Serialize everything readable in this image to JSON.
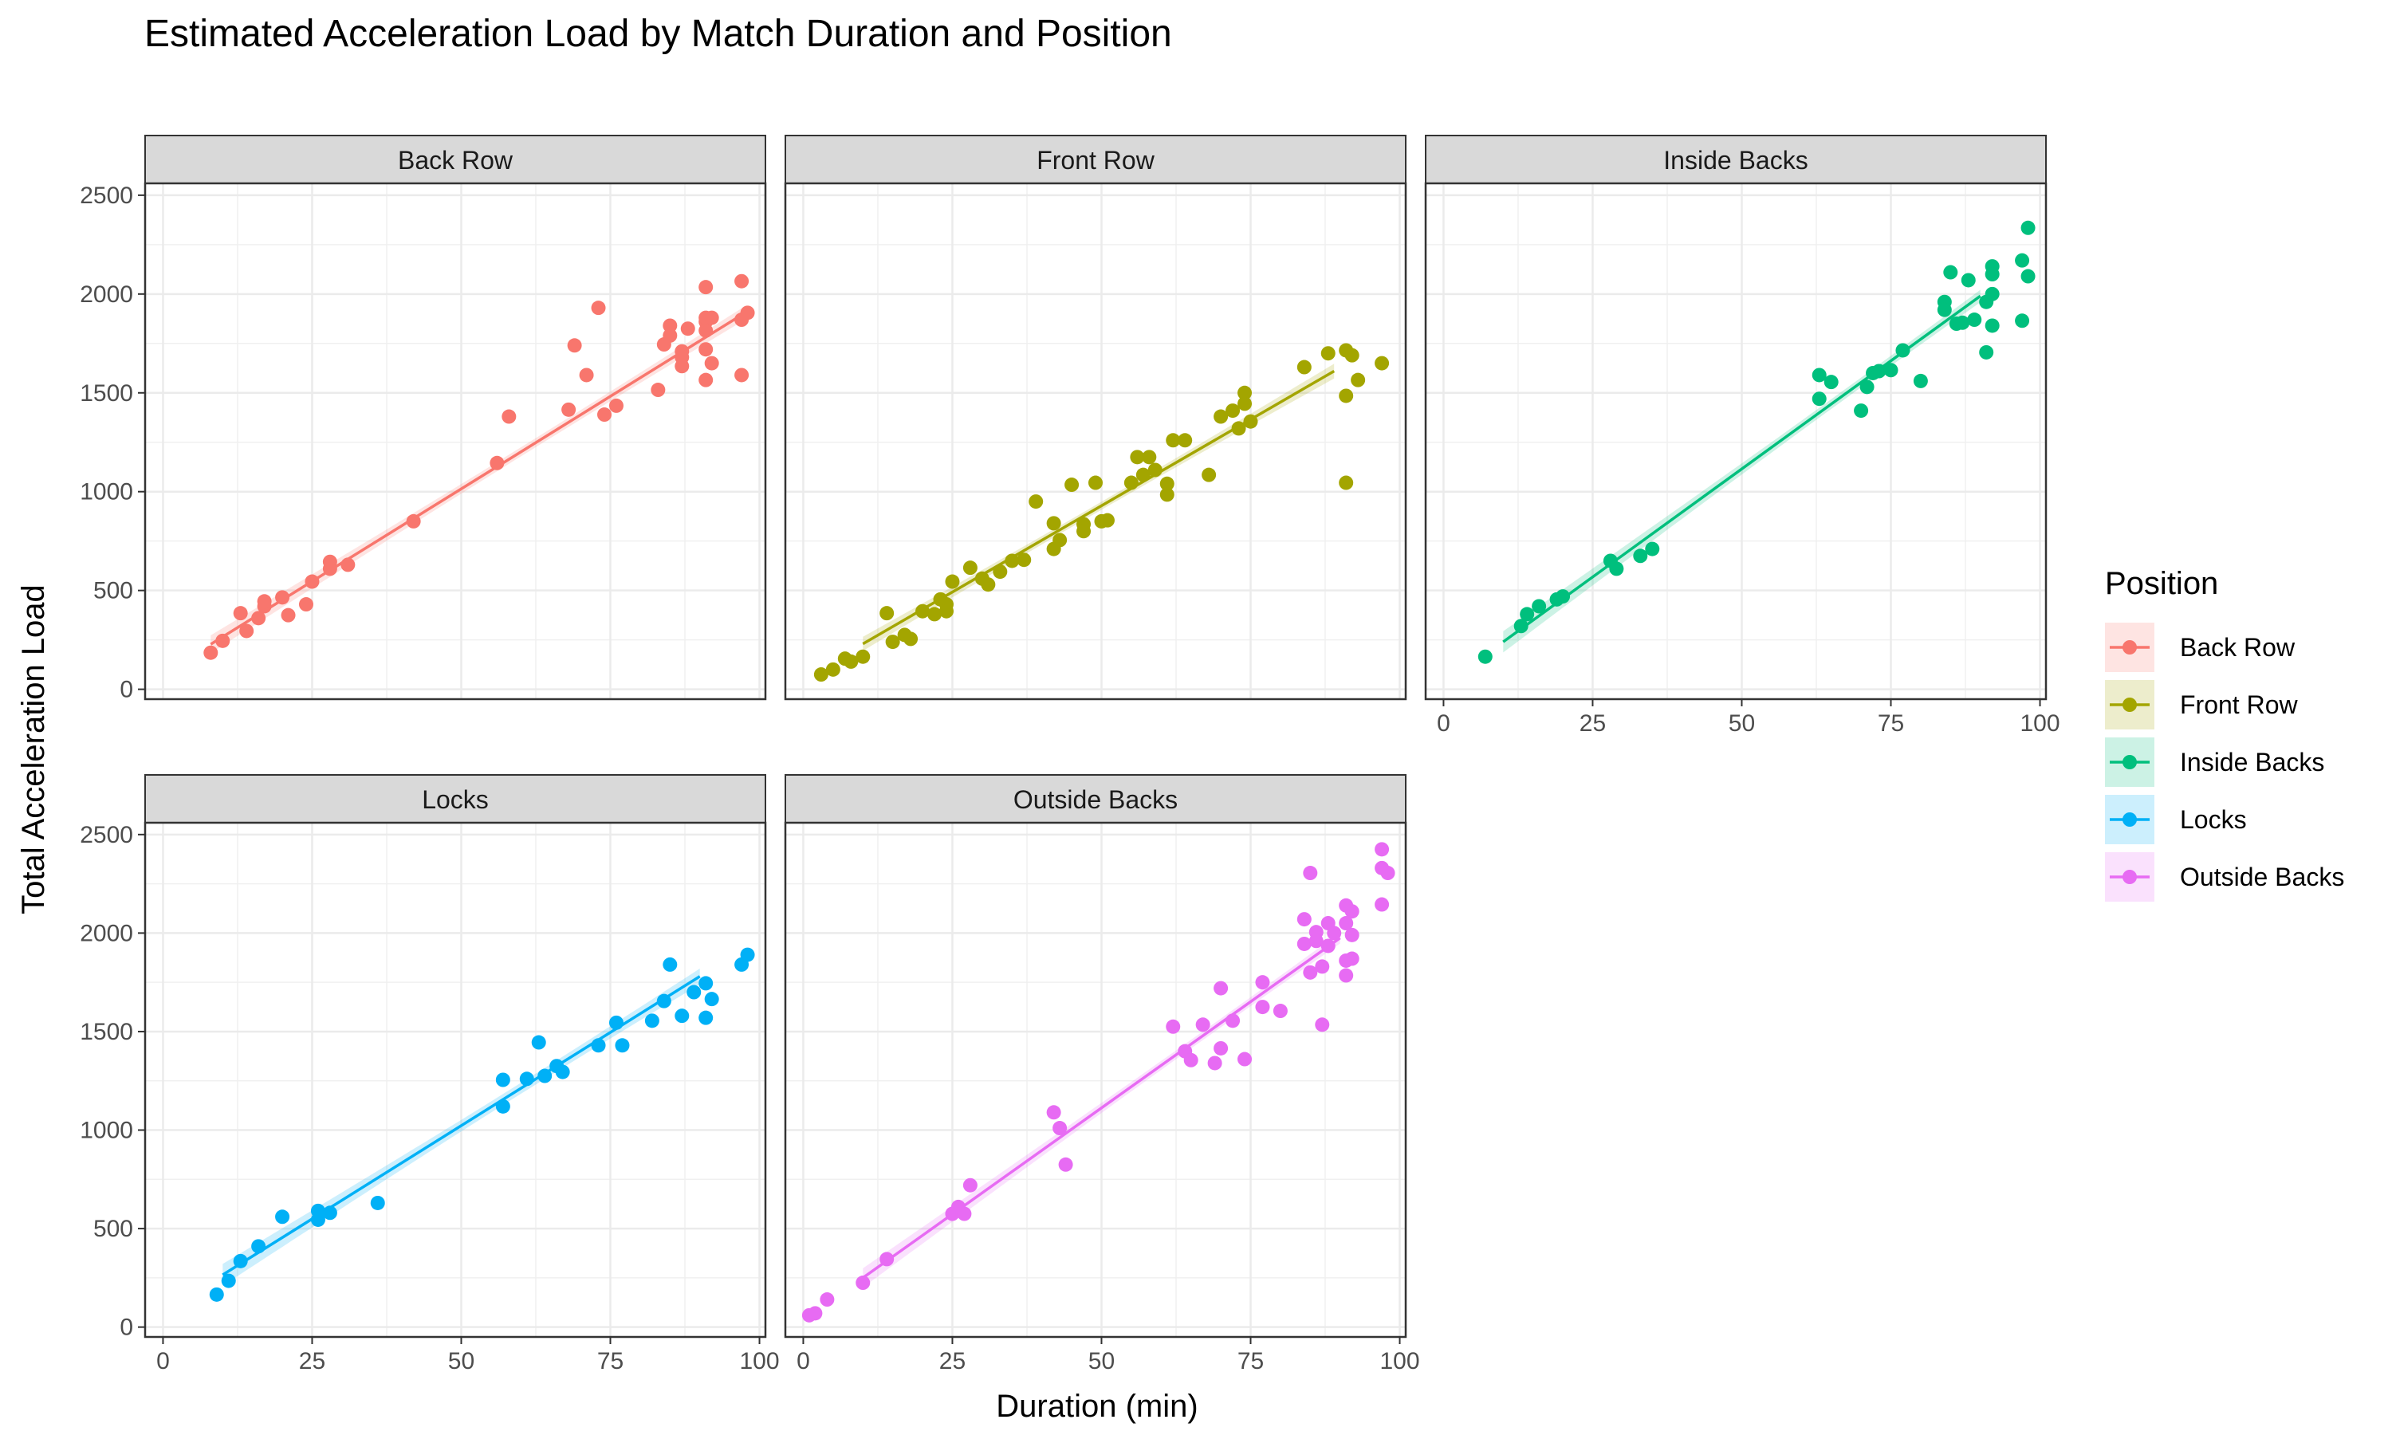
{
  "chart_data": {
    "type": "scatter",
    "title": "Estimated Acceleration Load by Match Duration and Position",
    "xlabel": "Duration (min)",
    "ylabel": "Total Acceleration Load",
    "xlim": [
      -3,
      101
    ],
    "ylim": [
      -50,
      2560
    ],
    "x_ticks": [
      0,
      25,
      50,
      75,
      100
    ],
    "y_ticks": [
      0,
      500,
      1000,
      1500,
      2000,
      2500
    ],
    "grid": true,
    "legend": {
      "title": "Position",
      "placement": "right"
    },
    "series": [
      {
        "name": "Back Row",
        "color": "#F8766D",
        "fit": [
          [
            8,
            228
          ],
          [
            97,
            1894
          ]
        ],
        "points": [
          [
            8,
            185
          ],
          [
            10,
            245
          ],
          [
            13,
            385
          ],
          [
            14,
            295
          ],
          [
            16,
            360
          ],
          [
            17,
            420
          ],
          [
            17,
            445
          ],
          [
            20,
            465
          ],
          [
            21,
            375
          ],
          [
            24,
            430
          ],
          [
            25,
            545
          ],
          [
            28,
            610
          ],
          [
            28,
            645
          ],
          [
            31,
            630
          ],
          [
            42,
            850
          ],
          [
            56,
            1145
          ],
          [
            58,
            1380
          ],
          [
            68,
            1415
          ],
          [
            69,
            1740
          ],
          [
            71,
            1590
          ],
          [
            73,
            1930
          ],
          [
            74,
            1390
          ],
          [
            76,
            1435
          ],
          [
            83,
            1515
          ],
          [
            84,
            1745
          ],
          [
            85,
            1790
          ],
          [
            85,
            1840
          ],
          [
            87,
            1635
          ],
          [
            87,
            1680
          ],
          [
            87,
            1710
          ],
          [
            88,
            1825
          ],
          [
            91,
            1860
          ],
          [
            91,
            1815
          ],
          [
            91,
            2035
          ],
          [
            91,
            1880
          ],
          [
            91,
            1720
          ],
          [
            91,
            1565
          ],
          [
            92,
            1650
          ],
          [
            92,
            1880
          ],
          [
            97,
            1590
          ],
          [
            97,
            1870
          ],
          [
            97,
            2065
          ],
          [
            98,
            1905
          ]
        ]
      },
      {
        "name": "Front Row",
        "color": "#A3A500",
        "fit": [
          [
            10,
            230
          ],
          [
            89,
            1610
          ]
        ],
        "points": [
          [
            3,
            75
          ],
          [
            5,
            100
          ],
          [
            7,
            155
          ],
          [
            8,
            140
          ],
          [
            10,
            165
          ],
          [
            14,
            385
          ],
          [
            15,
            240
          ],
          [
            17,
            275
          ],
          [
            18,
            255
          ],
          [
            20,
            395
          ],
          [
            22,
            380
          ],
          [
            23,
            455
          ],
          [
            24,
            430
          ],
          [
            24,
            395
          ],
          [
            25,
            545
          ],
          [
            28,
            615
          ],
          [
            30,
            560
          ],
          [
            31,
            530
          ],
          [
            33,
            595
          ],
          [
            35,
            650
          ],
          [
            37,
            655
          ],
          [
            39,
            950
          ],
          [
            42,
            840
          ],
          [
            42,
            710
          ],
          [
            43,
            755
          ],
          [
            45,
            1035
          ],
          [
            47,
            835
          ],
          [
            47,
            800
          ],
          [
            49,
            1045
          ],
          [
            50,
            850
          ],
          [
            51,
            855
          ],
          [
            55,
            1045
          ],
          [
            56,
            1175
          ],
          [
            57,
            1085
          ],
          [
            58,
            1175
          ],
          [
            59,
            1110
          ],
          [
            61,
            1040
          ],
          [
            61,
            985
          ],
          [
            62,
            1260
          ],
          [
            64,
            1260
          ],
          [
            68,
            1085
          ],
          [
            70,
            1380
          ],
          [
            72,
            1410
          ],
          [
            73,
            1320
          ],
          [
            74,
            1445
          ],
          [
            74,
            1500
          ],
          [
            75,
            1355
          ],
          [
            84,
            1630
          ],
          [
            88,
            1700
          ],
          [
            91,
            1715
          ],
          [
            91,
            1485
          ],
          [
            91,
            1045
          ],
          [
            92,
            1690
          ],
          [
            93,
            1565
          ],
          [
            97,
            1650
          ]
        ]
      },
      {
        "name": "Inside Backs",
        "color": "#00BF7D",
        "fit": [
          [
            10,
            240
          ],
          [
            90,
            1990
          ]
        ],
        "points": [
          [
            7,
            165
          ],
          [
            13,
            320
          ],
          [
            14,
            380
          ],
          [
            16,
            420
          ],
          [
            19,
            455
          ],
          [
            20,
            470
          ],
          [
            28,
            650
          ],
          [
            29,
            610
          ],
          [
            33,
            675
          ],
          [
            35,
            710
          ],
          [
            63,
            1590
          ],
          [
            63,
            1470
          ],
          [
            65,
            1555
          ],
          [
            70,
            1410
          ],
          [
            71,
            1530
          ],
          [
            72,
            1600
          ],
          [
            73,
            1610
          ],
          [
            75,
            1615
          ],
          [
            77,
            1715
          ],
          [
            80,
            1560
          ],
          [
            84,
            1960
          ],
          [
            84,
            1920
          ],
          [
            85,
            2110
          ],
          [
            86,
            1850
          ],
          [
            87,
            1855
          ],
          [
            88,
            2070
          ],
          [
            89,
            1870
          ],
          [
            91,
            1705
          ],
          [
            91,
            1960
          ],
          [
            92,
            2000
          ],
          [
            92,
            2140
          ],
          [
            92,
            1840
          ],
          [
            92,
            2100
          ],
          [
            97,
            2170
          ],
          [
            97,
            1865
          ],
          [
            98,
            2335
          ],
          [
            98,
            2090
          ]
        ]
      },
      {
        "name": "Locks",
        "color": "#00B0F6",
        "fit": [
          [
            10,
            265
          ],
          [
            90,
            1780
          ]
        ],
        "points": [
          [
            9,
            165
          ],
          [
            11,
            235
          ],
          [
            13,
            335
          ],
          [
            16,
            410
          ],
          [
            20,
            560
          ],
          [
            26,
            590
          ],
          [
            26,
            545
          ],
          [
            28,
            580
          ],
          [
            36,
            630
          ],
          [
            57,
            1255
          ],
          [
            57,
            1120
          ],
          [
            61,
            1260
          ],
          [
            63,
            1445
          ],
          [
            64,
            1275
          ],
          [
            66,
            1325
          ],
          [
            67,
            1295
          ],
          [
            73,
            1430
          ],
          [
            76,
            1545
          ],
          [
            77,
            1430
          ],
          [
            82,
            1555
          ],
          [
            84,
            1655
          ],
          [
            85,
            1840
          ],
          [
            87,
            1580
          ],
          [
            89,
            1700
          ],
          [
            91,
            1570
          ],
          [
            91,
            1745
          ],
          [
            92,
            1665
          ],
          [
            97,
            1840
          ],
          [
            98,
            1890
          ]
        ]
      },
      {
        "name": "Outside Backs",
        "color": "#E76BF3",
        "fit": [
          [
            10,
            250
          ],
          [
            90,
            1975
          ]
        ],
        "points": [
          [
            1,
            60
          ],
          [
            2,
            70
          ],
          [
            4,
            140
          ],
          [
            10,
            225
          ],
          [
            14,
            345
          ],
          [
            25,
            575
          ],
          [
            26,
            610
          ],
          [
            27,
            575
          ],
          [
            28,
            720
          ],
          [
            42,
            1090
          ],
          [
            43,
            1010
          ],
          [
            44,
            825
          ],
          [
            62,
            1525
          ],
          [
            64,
            1400
          ],
          [
            65,
            1355
          ],
          [
            67,
            1535
          ],
          [
            69,
            1340
          ],
          [
            70,
            1415
          ],
          [
            70,
            1720
          ],
          [
            72,
            1555
          ],
          [
            74,
            1360
          ],
          [
            77,
            1750
          ],
          [
            77,
            1625
          ],
          [
            80,
            1605
          ],
          [
            84,
            2070
          ],
          [
            84,
            1945
          ],
          [
            85,
            2305
          ],
          [
            85,
            1800
          ],
          [
            86,
            2005
          ],
          [
            86,
            1960
          ],
          [
            87,
            1830
          ],
          [
            87,
            1535
          ],
          [
            88,
            2050
          ],
          [
            88,
            1935
          ],
          [
            89,
            2000
          ],
          [
            91,
            1785
          ],
          [
            91,
            1860
          ],
          [
            91,
            2140
          ],
          [
            91,
            2050
          ],
          [
            92,
            2110
          ],
          [
            92,
            1990
          ],
          [
            92,
            1870
          ],
          [
            97,
            2425
          ],
          [
            97,
            2330
          ],
          [
            97,
            2145
          ],
          [
            98,
            2305
          ]
        ]
      }
    ]
  }
}
